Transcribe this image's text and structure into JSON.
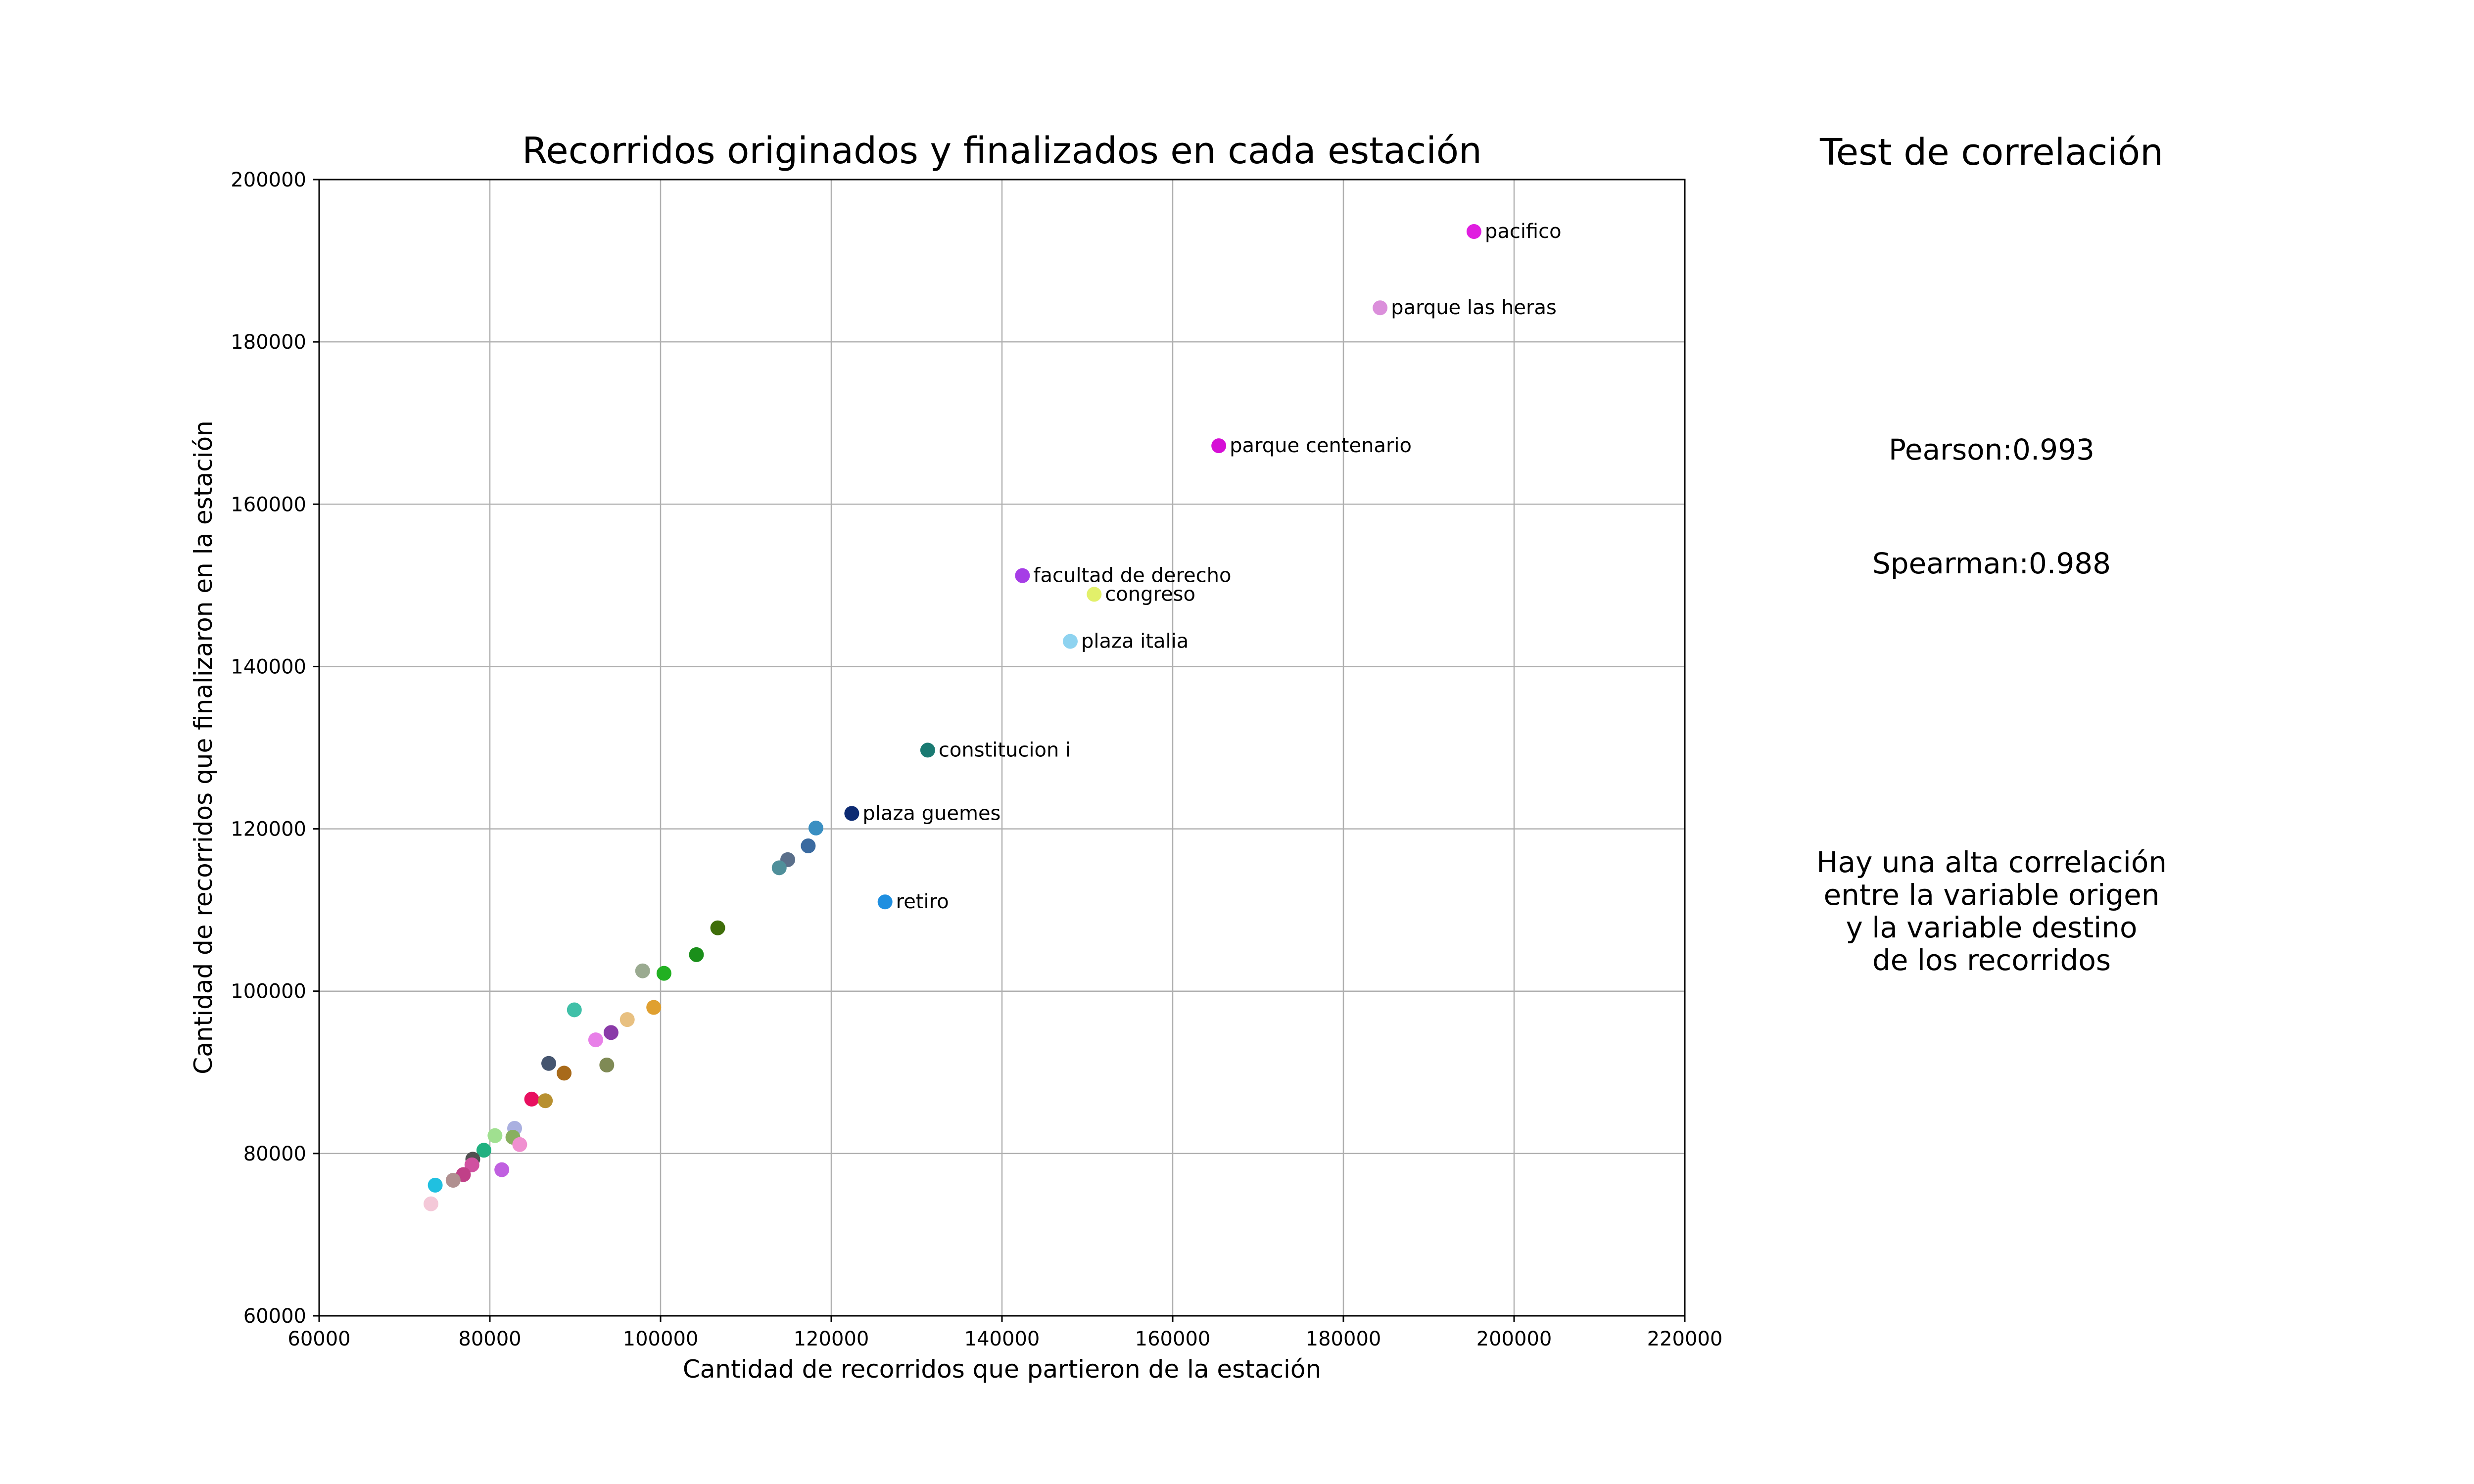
{
  "chart_data": {
    "type": "scatter",
    "title": "Recorridos originados y finalizados en cada estación",
    "xlabel": "Cantidad de recorridos que partieron de la estación",
    "ylabel": "Cantidad de recorridos que finalizaron en la estación",
    "xlim": [
      60000,
      220000
    ],
    "ylim": [
      60000,
      200000
    ],
    "xticks": [
      "60000",
      "80000",
      "100000",
      "120000",
      "140000",
      "160000",
      "180000",
      "200000",
      "220000"
    ],
    "yticks": [
      "60000",
      "80000",
      "100000",
      "120000",
      "140000",
      "160000",
      "180000",
      "200000"
    ],
    "grid": true,
    "points": [
      {
        "x": 195300,
        "y": 193600,
        "label": "pacifico",
        "color": "#e01ee0"
      },
      {
        "x": 184300,
        "y": 184200,
        "label": "parque las heras",
        "color": "#db8fdb"
      },
      {
        "x": 165400,
        "y": 167200,
        "label": "parque centenario",
        "color": "#d60fd6"
      },
      {
        "x": 142400,
        "y": 151200,
        "label": "facultad de derecho",
        "color": "#a63de6"
      },
      {
        "x": 150800,
        "y": 148900,
        "label": "congreso",
        "color": "#e2f06a"
      },
      {
        "x": 148000,
        "y": 143100,
        "label": "plaza italia",
        "color": "#8ed3f0"
      },
      {
        "x": 131300,
        "y": 129700,
        "label": "constitucion i",
        "color": "#1a7a72"
      },
      {
        "x": 122400,
        "y": 121900,
        "label": "plaza guemes",
        "color": "#0c2a72"
      },
      {
        "x": 126300,
        "y": 111000,
        "label": "retiro",
        "color": "#1f8fe0"
      },
      {
        "x": 118200,
        "y": 120100,
        "label": "",
        "color": "#3a8fc2"
      },
      {
        "x": 117300,
        "y": 117900,
        "label": "",
        "color": "#3a6aa0"
      },
      {
        "x": 114900,
        "y": 116200,
        "label": "",
        "color": "#5a6f8a"
      },
      {
        "x": 113900,
        "y": 115200,
        "label": "",
        "color": "#4f8f9a"
      },
      {
        "x": 106700,
        "y": 107800,
        "label": "",
        "color": "#3f6e0a"
      },
      {
        "x": 104200,
        "y": 104500,
        "label": "",
        "color": "#1a8f1a"
      },
      {
        "x": 100400,
        "y": 102200,
        "label": "",
        "color": "#22b022"
      },
      {
        "x": 97900,
        "y": 102500,
        "label": "",
        "color": "#9aaa90"
      },
      {
        "x": 99200,
        "y": 98000,
        "label": "",
        "color": "#e0a030"
      },
      {
        "x": 96100,
        "y": 96500,
        "label": "",
        "color": "#e8c080"
      },
      {
        "x": 89900,
        "y": 97700,
        "label": "",
        "color": "#40c0a8"
      },
      {
        "x": 94200,
        "y": 94900,
        "label": "",
        "color": "#8a3aa8"
      },
      {
        "x": 92400,
        "y": 94000,
        "label": "",
        "color": "#e880e8"
      },
      {
        "x": 93700,
        "y": 90900,
        "label": "",
        "color": "#7f8a55"
      },
      {
        "x": 86900,
        "y": 91100,
        "label": "",
        "color": "#45556f"
      },
      {
        "x": 88700,
        "y": 89900,
        "label": "",
        "color": "#a86a1a"
      },
      {
        "x": 84900,
        "y": 86700,
        "label": "",
        "color": "#e81060"
      },
      {
        "x": 86500,
        "y": 86500,
        "label": "",
        "color": "#b89030"
      },
      {
        "x": 82900,
        "y": 83100,
        "label": "",
        "color": "#aab0e0"
      },
      {
        "x": 80600,
        "y": 82200,
        "label": "",
        "color": "#a0e090"
      },
      {
        "x": 82700,
        "y": 82000,
        "label": "",
        "color": "#88b060"
      },
      {
        "x": 83500,
        "y": 81100,
        "label": "",
        "color": "#f090d0"
      },
      {
        "x": 79300,
        "y": 80400,
        "label": "",
        "color": "#20b080"
      },
      {
        "x": 78000,
        "y": 79300,
        "label": "",
        "color": "#505050"
      },
      {
        "x": 77900,
        "y": 78600,
        "label": "",
        "color": "#d050a0"
      },
      {
        "x": 81400,
        "y": 78000,
        "label": "",
        "color": "#c060e0"
      },
      {
        "x": 76900,
        "y": 77400,
        "label": "",
        "color": "#c04088"
      },
      {
        "x": 75700,
        "y": 76700,
        "label": "",
        "color": "#b09090"
      },
      {
        "x": 73600,
        "y": 76100,
        "label": "",
        "color": "#20c0e0"
      },
      {
        "x": 73100,
        "y": 73800,
        "label": "",
        "color": "#f4c8d8"
      }
    ]
  },
  "side_panel": {
    "title": "Test de correlación",
    "pearson": "Pearson:0.993",
    "spearman": "Spearman:0.988",
    "note_lines": [
      "Hay una alta correlación",
      "entre la variable origen",
      "y la variable destino",
      "de los recorridos"
    ]
  }
}
